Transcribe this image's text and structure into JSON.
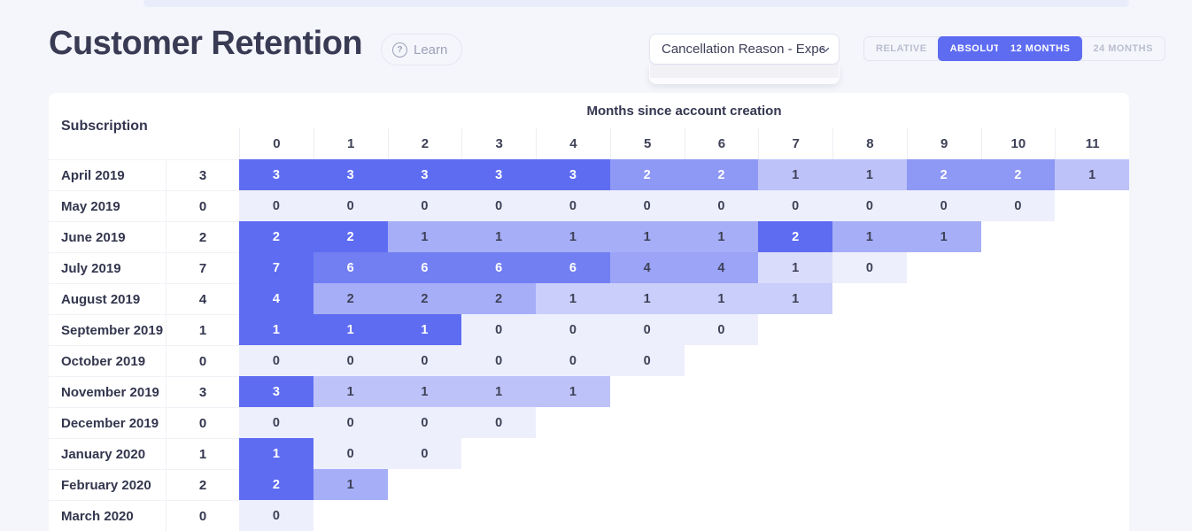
{
  "page": {
    "background": "#f5f6fb",
    "top_banner_color": "#e9edfb",
    "accent": "#5e6cf2"
  },
  "header": {
    "title": "Customer Retention",
    "learn_label": "Learn",
    "help_icon": "question-circle-icon"
  },
  "controls": {
    "metric_dropdown": {
      "value": "Cancellation Reason - Expectat",
      "caret_icon": "chevron-down-icon"
    },
    "mode_toggle": {
      "options": [
        "RELATIVE",
        "ABSOLUTE"
      ],
      "selected": "ABSOLUTE"
    },
    "range_toggle": {
      "options": [
        "12 MONTHS",
        "24 MONTHS"
      ],
      "selected": "12 MONTHS"
    }
  },
  "table": {
    "row_header": "Subscription",
    "col_group_header": "Months since account creation",
    "columns": [
      "0",
      "1",
      "2",
      "3",
      "4",
      "5",
      "6",
      "7",
      "8",
      "9",
      "10",
      "11"
    ],
    "heat_scale": {
      "min_color": "#edeffc",
      "max_color": "#5e6cf2",
      "dark_text": "#3e4157",
      "light_text": "#ffffff",
      "light_text_threshold": 0.6
    },
    "rows": [
      {
        "label": "April 2019",
        "size": 3,
        "values": [
          3,
          3,
          3,
          3,
          3,
          2,
          2,
          1,
          1,
          2,
          2,
          1
        ]
      },
      {
        "label": "May 2019",
        "size": 0,
        "values": [
          0,
          0,
          0,
          0,
          0,
          0,
          0,
          0,
          0,
          0,
          0
        ]
      },
      {
        "label": "June 2019",
        "size": 2,
        "values": [
          2,
          2,
          1,
          1,
          1,
          1,
          1,
          2,
          1,
          1
        ]
      },
      {
        "label": "July 2019",
        "size": 7,
        "values": [
          7,
          6,
          6,
          6,
          6,
          4,
          4,
          1,
          0
        ]
      },
      {
        "label": "August 2019",
        "size": 4,
        "values": [
          4,
          2,
          2,
          2,
          1,
          1,
          1,
          1
        ]
      },
      {
        "label": "September 2019",
        "size": 1,
        "values": [
          1,
          1,
          1,
          0,
          0,
          0,
          0
        ]
      },
      {
        "label": "October 2019",
        "size": 0,
        "values": [
          0,
          0,
          0,
          0,
          0,
          0
        ]
      },
      {
        "label": "November 2019",
        "size": 3,
        "values": [
          3,
          1,
          1,
          1,
          1
        ]
      },
      {
        "label": "December 2019",
        "size": 0,
        "values": [
          0,
          0,
          0,
          0
        ]
      },
      {
        "label": "January 2020",
        "size": 1,
        "values": [
          1,
          0,
          0
        ]
      },
      {
        "label": "February 2020",
        "size": 2,
        "values": [
          2,
          1
        ]
      },
      {
        "label": "March 2020",
        "size": 0,
        "values": [
          0
        ]
      }
    ]
  }
}
